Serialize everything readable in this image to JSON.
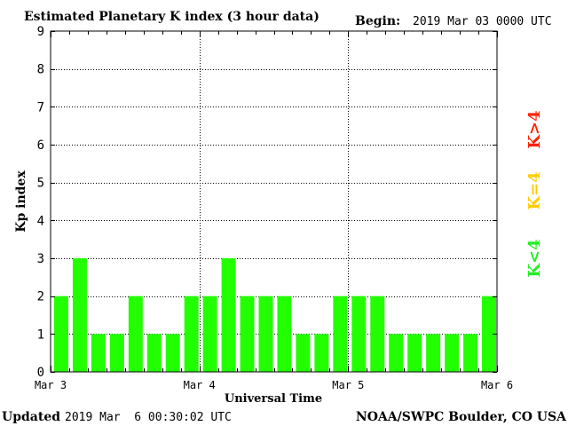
{
  "chart_data": {
    "type": "bar",
    "title": "Estimated Planetary K index (3 hour data)",
    "begin_label": "Begin:",
    "begin_value": "2019 Mar 03 0000 UTC",
    "xlabel": "Universal Time",
    "ylabel": "Kp index",
    "ylim": [
      0,
      9
    ],
    "yticks": [
      "0",
      "1",
      "2",
      "3",
      "4",
      "5",
      "6",
      "7",
      "8",
      "9"
    ],
    "xticks": [
      "Mar 3",
      "Mar 4",
      "Mar 5",
      "Mar 6"
    ],
    "values": [
      2,
      3,
      1,
      1,
      2,
      1,
      1,
      2,
      2,
      3,
      2,
      2,
      2,
      1,
      1,
      2,
      2,
      2,
      1,
      1,
      1,
      1,
      1,
      2
    ],
    "bar_color": "#22ff00",
    "grid": true,
    "legend": [
      {
        "label": "K<4",
        "color": "#22ee22"
      },
      {
        "label": "K=4",
        "color": "#ffcc00"
      },
      {
        "label": "K>4",
        "color": "#ff2200"
      }
    ]
  },
  "footer": {
    "updated_label": "Updated",
    "updated_value": "2019 Mar  6 00:30:02 UTC",
    "source": "NOAA/SWPC Boulder, CO USA"
  }
}
